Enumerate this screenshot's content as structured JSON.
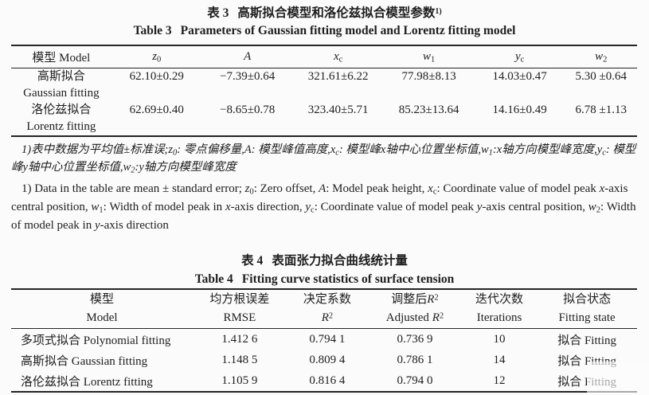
{
  "table3": {
    "title_cn": {
      "label": "表 3",
      "text": "高斯拟合模型和洛伦兹拟合模型参数",
      "note_ref": "1)"
    },
    "title_en": {
      "label": "Table 3",
      "text": "Parameters of Gaussian fitting model and Lorentz fitting model"
    },
    "header_model": "模型 Model",
    "headers": [
      [
        {
          "t": "z",
          "f": "i"
        },
        {
          "t": "0",
          "f": "sub"
        }
      ],
      [
        {
          "t": "A",
          "f": "i"
        }
      ],
      [
        {
          "t": "x",
          "f": "i"
        },
        {
          "t": "c",
          "f": "sub"
        }
      ],
      [
        {
          "t": "w",
          "f": "i"
        },
        {
          "t": "1",
          "f": "sub"
        }
      ],
      [
        {
          "t": "y",
          "f": "i"
        },
        {
          "t": "c",
          "f": "sub"
        }
      ],
      [
        {
          "t": "w",
          "f": "i"
        },
        {
          "t": "2",
          "f": "sub"
        }
      ]
    ],
    "rows": [
      {
        "name_cn": "高斯拟合",
        "name_en": "Gaussian fitting",
        "values": [
          "62.10±0.29",
          "−7.39±0.64",
          "321.61±6.22",
          "77.98±8.13",
          "14.03±0.47",
          "5.30 ±0.64"
        ]
      },
      {
        "name_cn": "洛伦兹拟合",
        "name_en": "Lorentz fitting",
        "values": [
          "62.69±0.40",
          "−8.65±0.78",
          "323.40±5.71",
          "85.23±13.64",
          "14.16±0.49",
          "6.78 ±1.13"
        ]
      }
    ],
    "footnote_cn": [
      {
        "t": "1)表中数据为平均值±标准误;"
      },
      {
        "t": "z",
        "f": "i"
      },
      {
        "t": "0",
        "f": "sub"
      },
      {
        "t": ": 零点偏移量,"
      },
      {
        "t": "A",
        "f": "i"
      },
      {
        "t": ": 模型峰值高度,"
      },
      {
        "t": "x",
        "f": "i"
      },
      {
        "t": "c",
        "f": "sub"
      },
      {
        "t": ": 模型峰"
      },
      {
        "t": "x",
        "f": "i"
      },
      {
        "t": "轴中心位置坐标值,"
      },
      {
        "t": "w",
        "f": "i"
      },
      {
        "t": "1",
        "f": "sub"
      },
      {
        "t": ":"
      },
      {
        "t": "x",
        "f": "i"
      },
      {
        "t": "轴方向模型峰宽度,"
      },
      {
        "t": "y",
        "f": "i"
      },
      {
        "t": "c",
        "f": "sub"
      },
      {
        "t": ": 模型峰"
      },
      {
        "t": "y",
        "f": "i"
      },
      {
        "t": "轴中心位置坐标值,"
      },
      {
        "t": "w",
        "f": "i"
      },
      {
        "t": "2",
        "f": "sub"
      },
      {
        "t": ":"
      },
      {
        "t": "y",
        "f": "i"
      },
      {
        "t": "轴方向模型峰宽度"
      }
    ],
    "footnote_en": [
      {
        "t": "1) Data in the table are mean ± standard error; "
      },
      {
        "t": "z",
        "f": "i"
      },
      {
        "t": "0",
        "f": "sub"
      },
      {
        "t": ": Zero offset, "
      },
      {
        "t": "A",
        "f": "i"
      },
      {
        "t": ": Model peak height, "
      },
      {
        "t": "x",
        "f": "i"
      },
      {
        "t": "c",
        "f": "sub"
      },
      {
        "t": ": Coordinate value of model peak "
      },
      {
        "t": "x",
        "f": "i"
      },
      {
        "t": "-axis central position, "
      },
      {
        "t": "w",
        "f": "i"
      },
      {
        "t": "1",
        "f": "sub"
      },
      {
        "t": ": Width of model peak in "
      },
      {
        "t": "x",
        "f": "i"
      },
      {
        "t": "-axis direction, "
      },
      {
        "t": "y",
        "f": "i"
      },
      {
        "t": "c",
        "f": "sub"
      },
      {
        "t": ": Coordinate value of model peak "
      },
      {
        "t": "y",
        "f": "i"
      },
      {
        "t": "-axis central position, "
      },
      {
        "t": "w",
        "f": "i"
      },
      {
        "t": "2",
        "f": "sub"
      },
      {
        "t": ": Width of model peak in "
      },
      {
        "t": "y",
        "f": "i"
      },
      {
        "t": "-axis direction"
      }
    ]
  },
  "table4": {
    "title_cn": {
      "label": "表 4",
      "text": "表面张力拟合曲线统计量"
    },
    "title_en": {
      "label": "Table 4",
      "text": "Fitting curve statistics of surface tension"
    },
    "headers": [
      {
        "cn": [
          {
            "t": "模型"
          }
        ],
        "en": [
          {
            "t": "Model"
          }
        ]
      },
      {
        "cn": [
          {
            "t": "均方根误差"
          }
        ],
        "en": [
          {
            "t": "RMSE"
          }
        ]
      },
      {
        "cn": [
          {
            "t": "决定系数"
          }
        ],
        "en": [
          {
            "t": "R",
            "f": "i"
          },
          {
            "t": "2",
            "f": "sup"
          }
        ]
      },
      {
        "cn": [
          {
            "t": "调整后"
          },
          {
            "t": "R",
            "f": "i"
          },
          {
            "t": "2",
            "f": "sup"
          }
        ],
        "en": [
          {
            "t": "Adjusted "
          },
          {
            "t": "R",
            "f": "i"
          },
          {
            "t": "2",
            "f": "sup"
          }
        ]
      },
      {
        "cn": [
          {
            "t": "迭代次数"
          }
        ],
        "en": [
          {
            "t": "Iterations"
          }
        ]
      },
      {
        "cn": [
          {
            "t": "拟合状态"
          }
        ],
        "en": [
          {
            "t": "Fitting state"
          }
        ]
      }
    ],
    "rows": [
      {
        "model": "多项式拟合 Polynomial fitting",
        "values": [
          "1.412 6",
          "0.794 1",
          "0.736 9",
          "10",
          "拟合 Fitting"
        ]
      },
      {
        "model": "高斯拟合 Gaussian fitting",
        "values": [
          "1.148 5",
          "0.809 4",
          "0.786 1",
          "14",
          "拟合 Fitting"
        ]
      },
      {
        "model": "洛伦兹拟合 Lorentz fitting",
        "values": [
          "1.105 9",
          "0.816 4",
          "0.794 0",
          "12",
          "拟合 Fitting"
        ]
      }
    ]
  }
}
